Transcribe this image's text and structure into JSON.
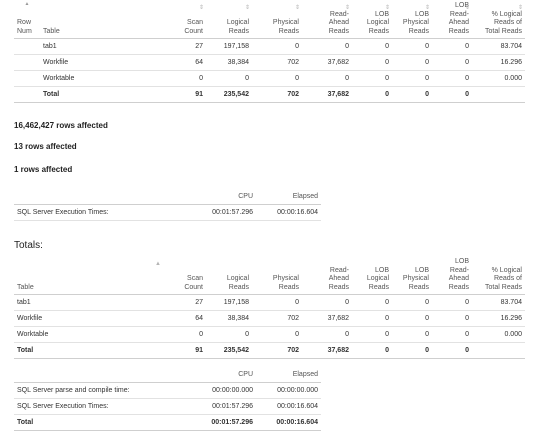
{
  "stats1": {
    "headers": {
      "row_num": [
        "Row",
        "Num"
      ],
      "table": [
        "Table"
      ],
      "scan": [
        "Scan",
        "Count"
      ],
      "logical": [
        "Logical",
        "Reads"
      ],
      "physical": [
        "Physical",
        "Reads"
      ],
      "readahead": [
        "Read-",
        "Ahead",
        "Reads"
      ],
      "lob_logical": [
        "LOB",
        "Logical",
        "Reads"
      ],
      "lob_physical": [
        "LOB",
        "Physical",
        "Reads"
      ],
      "lob_readahead": [
        "LOB",
        "Read-",
        "Ahead",
        "Reads"
      ],
      "pct": [
        "% Logical",
        "Reads of",
        "Total Reads"
      ]
    },
    "rows": [
      {
        "table": "tab1",
        "scan": "27",
        "logical": "197,158",
        "physical": "0",
        "readahead": "0",
        "lob_logical": "0",
        "lob_physical": "0",
        "lob_readahead": "0",
        "pct": "83.704"
      },
      {
        "table": "Workfile",
        "scan": "64",
        "logical": "38,384",
        "physical": "702",
        "readahead": "37,682",
        "lob_logical": "0",
        "lob_physical": "0",
        "lob_readahead": "0",
        "pct": "16.296"
      },
      {
        "table": "Worktable",
        "scan": "0",
        "logical": "0",
        "physical": "0",
        "readahead": "0",
        "lob_logical": "0",
        "lob_physical": "0",
        "lob_readahead": "0",
        "pct": "0.000"
      }
    ],
    "total": {
      "table": "Total",
      "scan": "91",
      "logical": "235,542",
      "physical": "702",
      "readahead": "37,682",
      "lob_logical": "0",
      "lob_physical": "0",
      "lob_readahead": "0"
    }
  },
  "messages": [
    "16,462,427 rows affected",
    "13 rows affected",
    "1 rows affected"
  ],
  "time1": {
    "headers": {
      "cpu": "CPU",
      "elapsed": "Elapsed"
    },
    "rows": [
      {
        "label": "SQL Server Execution Times:",
        "cpu": "00:01:57.296",
        "elapsed": "00:00:16.604"
      }
    ]
  },
  "totals_heading": "Totals:",
  "stats2": {
    "headers": {
      "table": [
        "Table"
      ],
      "scan": [
        "Scan",
        "Count"
      ],
      "logical": [
        "Logical",
        "Reads"
      ],
      "physical": [
        "Physical",
        "Reads"
      ],
      "readahead": [
        "Read-",
        "Ahead",
        "Reads"
      ],
      "lob_logical": [
        "LOB",
        "Logical",
        "Reads"
      ],
      "lob_physical": [
        "LOB",
        "Physical",
        "Reads"
      ],
      "lob_readahead": [
        "LOB",
        "Read-",
        "Ahead",
        "Reads"
      ],
      "pct": [
        "% Logical",
        "Reads of",
        "Total Reads"
      ]
    },
    "rows": [
      {
        "table": "tab1",
        "scan": "27",
        "logical": "197,158",
        "physical": "0",
        "readahead": "0",
        "lob_logical": "0",
        "lob_physical": "0",
        "lob_readahead": "0",
        "pct": "83.704"
      },
      {
        "table": "Workfile",
        "scan": "64",
        "logical": "38,384",
        "physical": "702",
        "readahead": "37,682",
        "lob_logical": "0",
        "lob_physical": "0",
        "lob_readahead": "0",
        "pct": "16.296"
      },
      {
        "table": "Worktable",
        "scan": "0",
        "logical": "0",
        "physical": "0",
        "readahead": "0",
        "lob_logical": "0",
        "lob_physical": "0",
        "lob_readahead": "0",
        "pct": "0.000"
      }
    ],
    "total": {
      "table": "Total",
      "scan": "91",
      "logical": "235,542",
      "physical": "702",
      "readahead": "37,682",
      "lob_logical": "0",
      "lob_physical": "0",
      "lob_readahead": "0"
    }
  },
  "time2": {
    "headers": {
      "cpu": "CPU",
      "elapsed": "Elapsed"
    },
    "rows": [
      {
        "label": "SQL Server parse and compile time:",
        "cpu": "00:00:00.000",
        "elapsed": "00:00:00.000"
      },
      {
        "label": "SQL Server Execution Times:",
        "cpu": "00:01:57.296",
        "elapsed": "00:00:16.604"
      }
    ],
    "total": {
      "label": "Total",
      "cpu": "00:01:57.296",
      "elapsed": "00:00:16.604"
    }
  }
}
